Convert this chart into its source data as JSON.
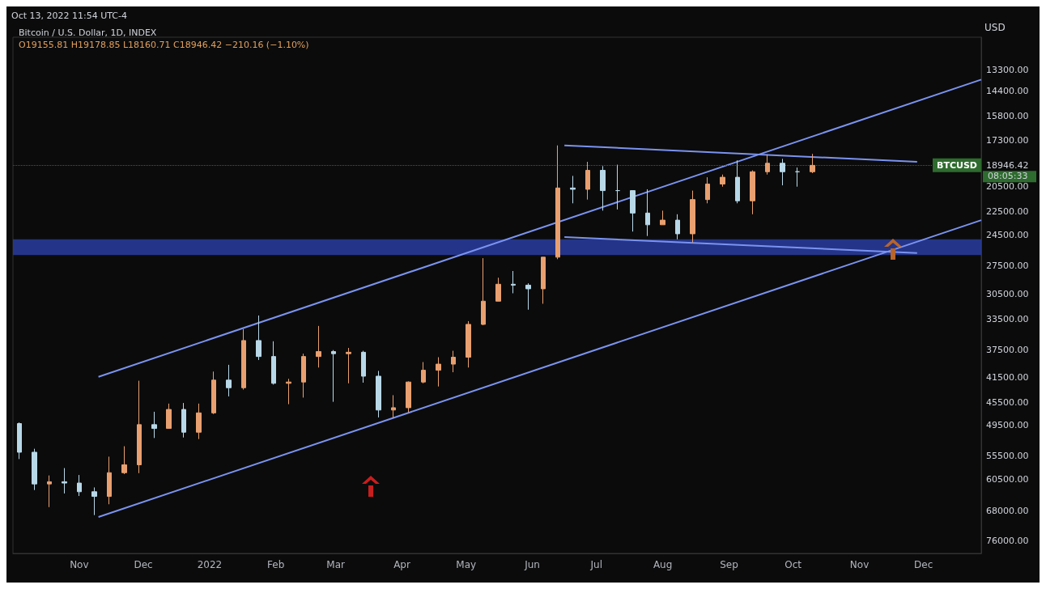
{
  "chart_data": {
    "type": "candlestick",
    "title": "Bitcoin / U.S. Dollar, 1D, INDEX",
    "subtitle": "O19155.81 H19178.85 L18160.71 C18946.42 −210.16 (−1.10%)",
    "ylabel": "USD",
    "annotations": [
      "Oct 13, 2022 11:54 UTC-4",
      "08:05:33"
    ],
    "x": [
      "2021-10-04",
      "2021-10-11",
      "2021-10-18",
      "2021-10-25",
      "2021-11-01",
      "2021-11-08",
      "2021-11-15",
      "2021-11-22",
      "2021-11-29",
      "2021-12-06",
      "2021-12-13",
      "2021-12-20",
      "2021-12-27",
      "2022-01-03",
      "2022-01-10",
      "2022-01-17",
      "2022-01-24",
      "2022-01-31",
      "2022-02-07",
      "2022-02-14",
      "2022-02-21",
      "2022-02-28",
      "2022-03-07",
      "2022-03-14",
      "2022-03-21",
      "2022-03-28",
      "2022-04-04",
      "2022-04-11",
      "2022-04-18",
      "2022-04-25",
      "2022-05-02",
      "2022-05-09",
      "2022-05-16",
      "2022-05-23",
      "2022-05-30",
      "2022-06-06",
      "2022-06-13",
      "2022-06-20",
      "2022-06-27",
      "2022-07-04",
      "2022-07-11",
      "2022-07-18",
      "2022-07-25",
      "2022-08-01",
      "2022-08-08",
      "2022-08-15",
      "2022-08-22",
      "2022-08-29",
      "2022-09-05",
      "2022-09-12",
      "2022-09-19",
      "2022-09-26",
      "2022-10-03",
      "2022-10-10"
    ],
    "ohlc": [
      [
        49200,
        56100,
        49000,
        54700
      ],
      [
        54700,
        62900,
        54000,
        61500
      ],
      [
        61500,
        67000,
        59600,
        61000
      ],
      [
        61000,
        63700,
        58000,
        61300
      ],
      [
        61300,
        64300,
        59500,
        63300
      ],
      [
        63300,
        69000,
        62300,
        64400
      ],
      [
        64400,
        66300,
        55600,
        59000
      ],
      [
        59000,
        59300,
        53500,
        57300
      ],
      [
        57300,
        59100,
        42000,
        49400
      ],
      [
        49400,
        51900,
        47100,
        50100
      ],
      [
        50100,
        50100,
        45700,
        46700
      ],
      [
        46700,
        51800,
        45600,
        50800
      ],
      [
        50800,
        52100,
        45700,
        47300
      ],
      [
        47300,
        47500,
        40600,
        41900
      ],
      [
        41900,
        44500,
        39600,
        43100
      ],
      [
        43100,
        43400,
        34700,
        36200
      ],
      [
        36200,
        38900,
        33000,
        38400
      ],
      [
        38400,
        42600,
        36300,
        42400
      ],
      [
        42400,
        45800,
        41700,
        42200
      ],
      [
        42200,
        44700,
        38000,
        38400
      ],
      [
        38400,
        40000,
        34300,
        37700
      ],
      [
        37700,
        45400,
        37500,
        38000
      ],
      [
        38000,
        42400,
        37200,
        37800
      ],
      [
        37800,
        42300,
        37600,
        41300
      ],
      [
        41300,
        48100,
        40500,
        46800
      ],
      [
        46800,
        48200,
        44300,
        46400
      ],
      [
        46400,
        47200,
        42100,
        42200
      ],
      [
        42200,
        42400,
        39200,
        40400
      ],
      [
        40400,
        42900,
        38500,
        39500
      ],
      [
        39500,
        40700,
        37600,
        38500
      ],
      [
        38500,
        40000,
        33700,
        34100
      ],
      [
        34100,
        34200,
        26700,
        31300
      ],
      [
        31300,
        31300,
        28700,
        29400
      ],
      [
        29400,
        30400,
        28000,
        29500
      ],
      [
        29500,
        32300,
        29300,
        29900
      ],
      [
        29900,
        31600,
        26600,
        26600
      ],
      [
        26600,
        26800,
        17600,
        20600
      ],
      [
        20600,
        21800,
        19700,
        20700
      ],
      [
        20700,
        21500,
        18700,
        19300
      ],
      [
        19300,
        22400,
        19000,
        20800
      ],
      [
        20800,
        22300,
        18900,
        20800
      ],
      [
        20800,
        24200,
        20800,
        22600
      ],
      [
        22600,
        24600,
        20700,
        23600
      ],
      [
        23600,
        23600,
        22400,
        23200
      ],
      [
        23200,
        24900,
        22700,
        24400
      ],
      [
        24400,
        25200,
        20800,
        21500
      ],
      [
        21500,
        21800,
        19800,
        20300
      ],
      [
        20300,
        20500,
        19600,
        19800
      ],
      [
        19800,
        21800,
        18600,
        21600
      ],
      [
        21600,
        22700,
        19300,
        19400
      ],
      [
        19400,
        19600,
        18200,
        18800
      ],
      [
        18800,
        20400,
        18500,
        19400
      ],
      [
        19400,
        20500,
        19100,
        19400
      ],
      [
        19400,
        19500,
        18160.71,
        18946.42
      ]
    ],
    "series": [
      {
        "type": "line",
        "color": "#7b93f0",
        "x": [
          "2021-11-10",
          "2022-12-28"
        ],
        "values": [
          41400,
          13800
        ]
      },
      {
        "type": "line",
        "color": "#7b93f0",
        "x": [
          "2021-11-10",
          "2022-12-28"
        ],
        "values": [
          69500,
          23200
        ]
      },
      {
        "type": "line",
        "color": "#7b93f0",
        "x": [
          "2022-06-16",
          "2022-11-28"
        ],
        "values": [
          17600,
          18700
        ]
      },
      {
        "type": "line",
        "color": "#7b93f0",
        "x": [
          "2022-06-16",
          "2022-11-28"
        ],
        "values": [
          24700,
          26200
        ]
      }
    ],
    "bands": [
      {
        "axis": "y",
        "from": 24900,
        "to": 26400,
        "color": "#2a3ea8"
      }
    ],
    "ref_lines": [
      {
        "axis": "y",
        "value": 18946.42,
        "label": "BTCUSD",
        "color": "#2e6b2e"
      }
    ],
    "log": true,
    "xlim": [
      "2021-10-01",
      "2022-12-28"
    ],
    "xticks": [
      {
        "value": "2021-11-01",
        "label": "Nov"
      },
      {
        "value": "2021-12-01",
        "label": "Dec"
      },
      {
        "value": "2022-01-01",
        "label": "2022"
      },
      {
        "value": "2022-02-01",
        "label": "Feb"
      },
      {
        "value": "2022-03-01",
        "label": "Mar"
      },
      {
        "value": "2022-04-01",
        "label": "Apr"
      },
      {
        "value": "2022-05-01",
        "label": "May"
      },
      {
        "value": "2022-06-01",
        "label": "Jun"
      },
      {
        "value": "2022-07-01",
        "label": "Jul"
      },
      {
        "value": "2022-08-01",
        "label": "Aug"
      },
      {
        "value": "2022-09-01",
        "label": "Sep"
      },
      {
        "value": "2022-10-01",
        "label": "Oct"
      },
      {
        "value": "2022-11-01",
        "label": "Nov"
      },
      {
        "value": "2022-12-01",
        "label": "Dec"
      }
    ],
    "ylim": [
      79500,
      11800
    ],
    "yticks": [
      {
        "value": 13300,
        "label": "13300.00"
      },
      {
        "value": 14400,
        "label": "14400.00"
      },
      {
        "value": 15800,
        "label": "15800.00"
      },
      {
        "value": 17300,
        "label": "17300.00"
      },
      {
        "value": 18946.42,
        "label": "18946.42"
      },
      {
        "value": 20500,
        "label": "20500.00"
      },
      {
        "value": 22500,
        "label": "22500.00"
      },
      {
        "value": 24500,
        "label": "24500.00"
      },
      {
        "value": 27500,
        "label": "27500.00"
      },
      {
        "value": 30500,
        "label": "30500.00"
      },
      {
        "value": 33500,
        "label": "33500.00"
      },
      {
        "value": 37500,
        "label": "37500.00"
      },
      {
        "value": 41500,
        "label": "41500.00"
      },
      {
        "value": 45500,
        "label": "45500.00"
      },
      {
        "value": 49500,
        "label": "49500.00"
      },
      {
        "value": 55500,
        "label": "55500.00"
      },
      {
        "value": 60500,
        "label": "60500.00"
      },
      {
        "value": 68000,
        "label": "68000.00"
      },
      {
        "value": 76000,
        "label": "76000.00"
      }
    ],
    "grid": false
  }
}
